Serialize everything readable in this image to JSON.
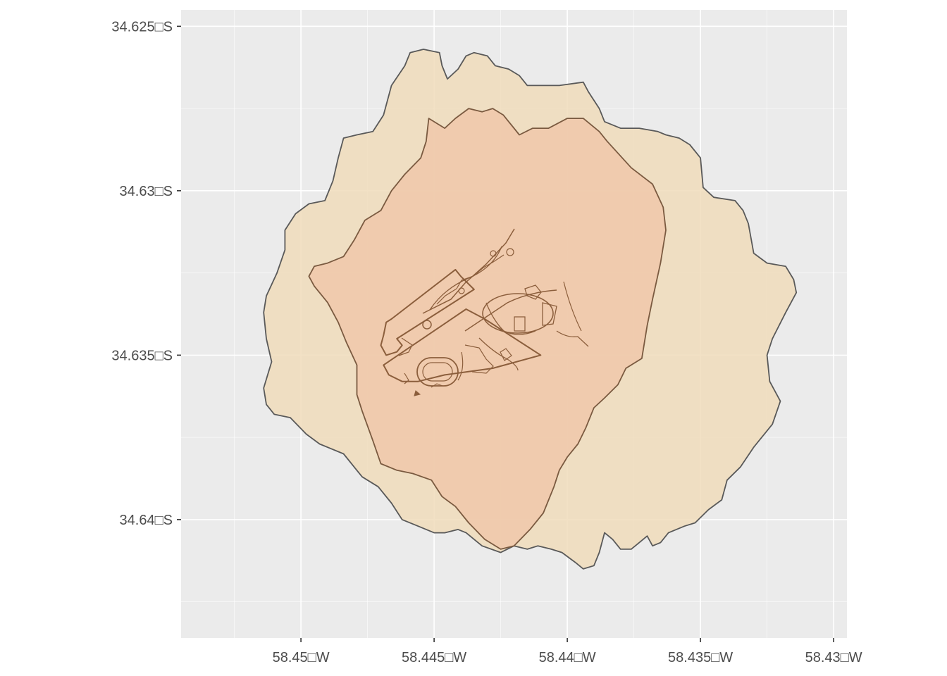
{
  "chart_data": {
    "type": "map",
    "title": "",
    "xlabel": "",
    "ylabel": "",
    "panel_background": "#ebebeb",
    "grid": true,
    "grid_color": "#ffffff",
    "x_ticks": [
      {
        "value": -58.45,
        "label": "58.45□W"
      },
      {
        "value": -58.445,
        "label": "58.445□W"
      },
      {
        "value": -58.44,
        "label": "58.44□W"
      },
      {
        "value": -58.435,
        "label": "58.435□W"
      },
      {
        "value": -58.43,
        "label": "58.43□W"
      }
    ],
    "y_ticks": [
      {
        "value": -34.625,
        "label": "34.625□S"
      },
      {
        "value": -34.63,
        "label": "34.63□S"
      },
      {
        "value": -34.635,
        "label": "34.635□S"
      },
      {
        "value": -34.64,
        "label": "34.64□S"
      }
    ],
    "xlim": [
      -58.4545,
      -58.4295
    ],
    "ylim": [
      -34.6436,
      -34.6245
    ],
    "layers": [
      {
        "name": "outer",
        "fill": "#f0dcbb",
        "stroke": "#595959",
        "points": [
          [
            -58.4459,
            -34.6258
          ],
          [
            -58.4454,
            -34.6257
          ],
          [
            -58.4448,
            -34.6258
          ],
          [
            -58.4447,
            -34.6262
          ],
          [
            -58.4445,
            -34.6266
          ],
          [
            -58.4441,
            -34.6263
          ],
          [
            -58.4438,
            -34.6259
          ],
          [
            -58.4435,
            -34.6258
          ],
          [
            -58.443,
            -34.6259
          ],
          [
            -58.4427,
            -34.6262
          ],
          [
            -58.4422,
            -34.6263
          ],
          [
            -58.4418,
            -34.6265
          ],
          [
            -58.4415,
            -34.6268
          ],
          [
            -58.441,
            -34.6268
          ],
          [
            -58.4403,
            -34.6268
          ],
          [
            -58.4394,
            -34.6267
          ],
          [
            -58.4392,
            -34.627
          ],
          [
            -58.4388,
            -34.6275
          ],
          [
            -58.4386,
            -34.6279
          ],
          [
            -58.438,
            -34.6281
          ],
          [
            -58.4373,
            -34.6281
          ],
          [
            -58.4366,
            -34.6282
          ],
          [
            -58.4363,
            -34.6283
          ],
          [
            -58.4358,
            -34.6284
          ],
          [
            -58.4354,
            -34.6286
          ],
          [
            -58.435,
            -34.629
          ],
          [
            -58.4349,
            -34.6299
          ],
          [
            -58.4345,
            -34.6302
          ],
          [
            -58.4337,
            -34.6303
          ],
          [
            -58.4334,
            -34.6306
          ],
          [
            -58.4332,
            -34.631
          ],
          [
            -58.433,
            -34.6319
          ],
          [
            -58.4325,
            -34.6322
          ],
          [
            -58.4318,
            -34.6323
          ],
          [
            -58.4315,
            -34.6327
          ],
          [
            -58.4314,
            -34.6331
          ],
          [
            -58.4318,
            -34.6337
          ],
          [
            -58.4323,
            -34.6345
          ],
          [
            -58.4325,
            -34.635
          ],
          [
            -58.4324,
            -34.6358
          ],
          [
            -58.432,
            -34.6364
          ],
          [
            -58.4323,
            -34.6371
          ],
          [
            -58.433,
            -34.6378
          ],
          [
            -58.4335,
            -34.6384
          ],
          [
            -58.434,
            -34.6388
          ],
          [
            -58.4342,
            -34.6394
          ],
          [
            -58.4347,
            -34.6397
          ],
          [
            -58.4352,
            -34.6401
          ],
          [
            -58.4356,
            -34.6402
          ],
          [
            -58.4362,
            -34.6404
          ],
          [
            -58.4365,
            -34.6407
          ],
          [
            -58.4368,
            -34.6408
          ],
          [
            -58.437,
            -34.6405
          ],
          [
            -58.4373,
            -34.6407
          ],
          [
            -58.4376,
            -34.6409
          ],
          [
            -58.438,
            -34.6409
          ],
          [
            -58.4383,
            -34.6406
          ],
          [
            -58.4386,
            -34.6404
          ],
          [
            -58.4388,
            -34.641
          ],
          [
            -58.439,
            -34.6414
          ],
          [
            -58.4394,
            -34.6415
          ],
          [
            -58.4397,
            -34.6413
          ],
          [
            -58.4402,
            -34.641
          ],
          [
            -58.4406,
            -34.6409
          ],
          [
            -58.4411,
            -34.6408
          ],
          [
            -58.4415,
            -34.6409
          ],
          [
            -58.442,
            -34.6408
          ],
          [
            -58.4425,
            -34.641
          ],
          [
            -58.4432,
            -34.6408
          ],
          [
            -58.4438,
            -34.6404
          ],
          [
            -58.4441,
            -34.6403
          ],
          [
            -58.4446,
            -34.6404
          ],
          [
            -58.445,
            -34.6404
          ],
          [
            -58.4456,
            -34.6402
          ],
          [
            -58.4462,
            -34.64
          ],
          [
            -58.4466,
            -34.6395
          ],
          [
            -58.4471,
            -34.639
          ],
          [
            -58.4477,
            -34.6387
          ],
          [
            -58.4484,
            -34.638
          ],
          [
            -58.4493,
            -34.6377
          ],
          [
            -58.4498,
            -34.6374
          ],
          [
            -58.4504,
            -34.6369
          ],
          [
            -58.451,
            -34.6368
          ],
          [
            -58.4513,
            -34.6365
          ],
          [
            -58.4514,
            -34.636
          ],
          [
            -58.4511,
            -34.6352
          ],
          [
            -58.4513,
            -34.6345
          ],
          [
            -58.4514,
            -34.6337
          ],
          [
            -58.4513,
            -34.6332
          ],
          [
            -58.4509,
            -34.6325
          ],
          [
            -58.4506,
            -34.6318
          ],
          [
            -58.4506,
            -34.6312
          ],
          [
            -58.4502,
            -34.6307
          ],
          [
            -58.4497,
            -34.6304
          ],
          [
            -58.4491,
            -34.6303
          ],
          [
            -58.4488,
            -34.6297
          ],
          [
            -58.4486,
            -34.629
          ],
          [
            -58.4484,
            -34.6284
          ],
          [
            -58.4479,
            -34.6283
          ],
          [
            -58.4473,
            -34.6282
          ],
          [
            -58.4469,
            -34.6277
          ],
          [
            -58.4466,
            -34.6268
          ],
          [
            -58.4461,
            -34.6262
          ]
        ]
      },
      {
        "name": "inner",
        "fill": "#f0c8aa",
        "stroke": "#7a5a40",
        "points": [
          [
            -58.4452,
            -34.6278
          ],
          [
            -58.4446,
            -34.6281
          ],
          [
            -58.4442,
            -34.6278
          ],
          [
            -58.4437,
            -34.6275
          ],
          [
            -58.4432,
            -34.6276
          ],
          [
            -58.4428,
            -34.6275
          ],
          [
            -58.4424,
            -34.6277
          ],
          [
            -58.4418,
            -34.6283
          ],
          [
            -58.4413,
            -34.6281
          ],
          [
            -58.4407,
            -34.6281
          ],
          [
            -58.44,
            -34.6278
          ],
          [
            -58.4394,
            -34.6278
          ],
          [
            -58.4388,
            -34.6282
          ],
          [
            -58.4385,
            -34.6285
          ],
          [
            -58.4376,
            -34.6293
          ],
          [
            -58.4368,
            -34.6298
          ],
          [
            -58.4364,
            -34.6305
          ],
          [
            -58.4363,
            -34.6312
          ],
          [
            -58.4365,
            -34.6322
          ],
          [
            -58.4368,
            -34.6333
          ],
          [
            -58.437,
            -34.6341
          ],
          [
            -58.4372,
            -34.6351
          ],
          [
            -58.4378,
            -34.6354
          ],
          [
            -58.4381,
            -34.6359
          ],
          [
            -58.4386,
            -34.6363
          ],
          [
            -58.439,
            -34.6366
          ],
          [
            -58.4393,
            -34.6372
          ],
          [
            -58.4396,
            -34.6377
          ],
          [
            -58.44,
            -34.6381
          ],
          [
            -58.4403,
            -34.6385
          ],
          [
            -58.4405,
            -34.639
          ],
          [
            -58.4409,
            -34.6398
          ],
          [
            -58.4414,
            -34.6403
          ],
          [
            -58.442,
            -34.6408
          ],
          [
            -58.4425,
            -34.6409
          ],
          [
            -58.4431,
            -34.6406
          ],
          [
            -58.4437,
            -34.6401
          ],
          [
            -58.4442,
            -34.6396
          ],
          [
            -58.4447,
            -34.6393
          ],
          [
            -58.4451,
            -34.6388
          ],
          [
            -58.4458,
            -34.6386
          ],
          [
            -58.4464,
            -34.6385
          ],
          [
            -58.447,
            -34.6383
          ],
          [
            -58.4473,
            -34.6376
          ],
          [
            -58.4477,
            -34.6367
          ],
          [
            -58.4479,
            -34.6362
          ],
          [
            -58.4479,
            -34.6353
          ],
          [
            -58.4483,
            -34.6346
          ],
          [
            -58.4486,
            -34.634
          ],
          [
            -58.449,
            -34.6334
          ],
          [
            -58.4495,
            -34.6329
          ],
          [
            -58.4497,
            -34.6326
          ],
          [
            -58.4495,
            -34.6323
          ],
          [
            -58.449,
            -34.6322
          ],
          [
            -58.4484,
            -34.632
          ],
          [
            -58.448,
            -34.6315
          ],
          [
            -58.4476,
            -34.6309
          ],
          [
            -58.447,
            -34.6306
          ],
          [
            -58.4466,
            -34.63
          ],
          [
            -58.4461,
            -34.6295
          ],
          [
            -58.4455,
            -34.629
          ],
          [
            -58.4453,
            -34.6285
          ]
        ]
      }
    ],
    "street_outlines": [
      {
        "name": "park-north",
        "points": [
          [
            -58.4466,
            -34.6339
          ],
          [
            -58.4442,
            -34.6324
          ],
          [
            -58.444,
            -34.6326
          ],
          [
            -58.4435,
            -34.633
          ],
          [
            -58.4464,
            -34.6345
          ],
          [
            -58.4462,
            -34.6347
          ],
          [
            -58.4464,
            -34.6349
          ],
          [
            -58.4468,
            -34.635
          ],
          [
            -58.447,
            -34.6347
          ],
          [
            -58.4469,
            -34.6344
          ],
          [
            -58.4468,
            -34.634
          ]
        ]
      },
      {
        "name": "park-south",
        "points": [
          [
            -58.4438,
            -34.6336
          ],
          [
            -58.4431,
            -34.6339
          ],
          [
            -58.441,
            -34.635
          ],
          [
            -58.4428,
            -34.6354
          ],
          [
            -58.4446,
            -34.6356
          ],
          [
            -58.4456,
            -34.6358
          ],
          [
            -58.4462,
            -34.6358
          ],
          [
            -58.4467,
            -34.6356
          ],
          [
            -58.4469,
            -34.6353
          ]
        ]
      }
    ]
  }
}
